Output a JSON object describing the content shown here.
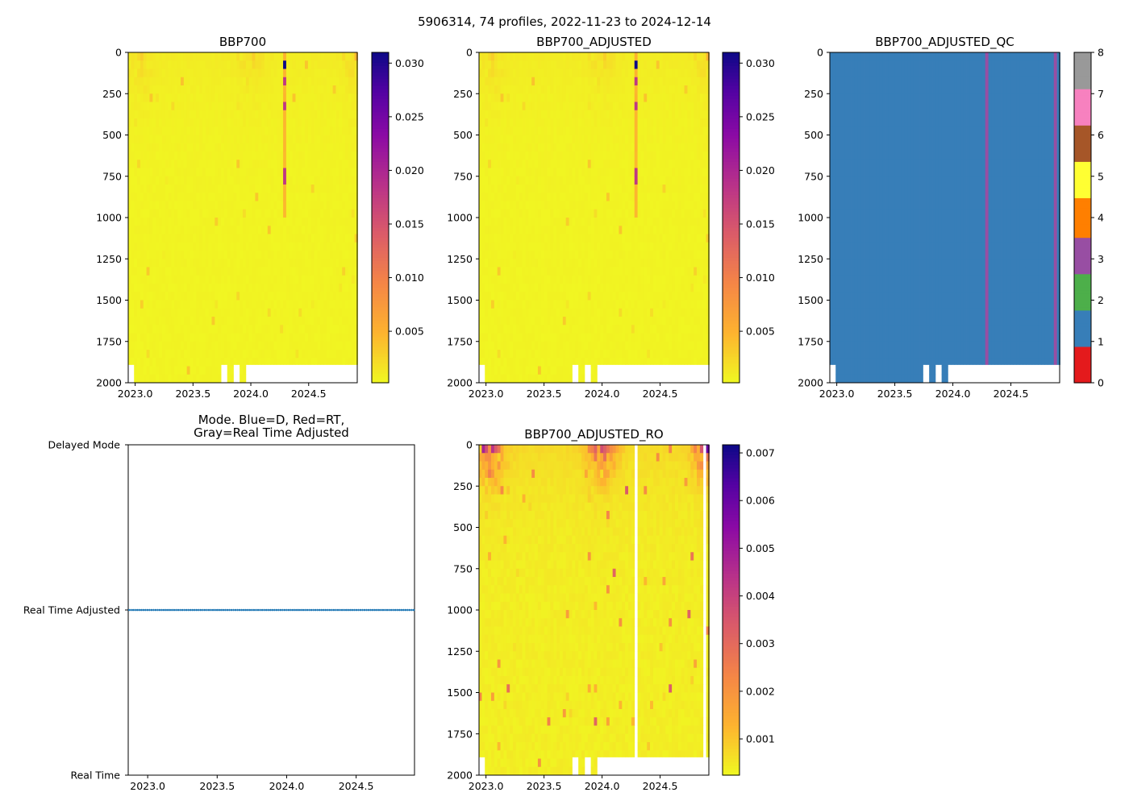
{
  "suptitle": "5906314, 74 profiles, 2022-11-23 to 2024-12-14",
  "chart_data": [
    {
      "id": "bbp700",
      "type": "heatmap",
      "title": "BBP700",
      "n_profiles": 74,
      "xlim": [
        2022.94,
        2024.92
      ],
      "ylim": [
        2000,
        0
      ],
      "xticks": [
        "2023.0",
        "2023.5",
        "2024.0",
        "2024.5"
      ],
      "xtick_values": [
        2023.0,
        2023.5,
        2024.0,
        2024.5
      ],
      "yticks": [
        "0",
        "250",
        "500",
        "750",
        "1000",
        "1250",
        "1500",
        "1750",
        "2000"
      ],
      "ytick_values": [
        0,
        250,
        500,
        750,
        1000,
        1250,
        1500,
        1750,
        2000
      ],
      "colormap": "plasma_r",
      "clim": [
        0.0002,
        0.031
      ],
      "colorbar_ticks": [
        "0.005",
        "0.010",
        "0.015",
        "0.020",
        "0.025",
        "0.030"
      ],
      "colorbar_tick_values": [
        0.005,
        0.01,
        0.015,
        0.02,
        0.025,
        0.03
      ],
      "typical_value": 0.0008,
      "surface_max_typical": 0.004,
      "anomaly_profile_time": 2024.29,
      "anomaly_max": 0.031
    },
    {
      "id": "bbp700_adjusted",
      "type": "heatmap",
      "title": "BBP700_ADJUSTED",
      "n_profiles": 74,
      "xlim": [
        2022.94,
        2024.92
      ],
      "ylim": [
        2000,
        0
      ],
      "xticks": [
        "2023.0",
        "2023.5",
        "2024.0",
        "2024.5"
      ],
      "xtick_values": [
        2023.0,
        2023.5,
        2024.0,
        2024.5
      ],
      "yticks": [
        "0",
        "250",
        "500",
        "750",
        "1000",
        "1250",
        "1500",
        "1750",
        "2000"
      ],
      "ytick_values": [
        0,
        250,
        500,
        750,
        1000,
        1250,
        1500,
        1750,
        2000
      ],
      "colormap": "plasma_r",
      "clim": [
        0.0002,
        0.031
      ],
      "colorbar_ticks": [
        "0.005",
        "0.010",
        "0.015",
        "0.020",
        "0.025",
        "0.030"
      ],
      "colorbar_tick_values": [
        0.005,
        0.01,
        0.015,
        0.02,
        0.025,
        0.03
      ],
      "anomaly_profile_time": 2024.29
    },
    {
      "id": "bbp700_adjusted_qc",
      "type": "heatmap",
      "title": "BBP700_ADJUSTED_QC",
      "n_profiles": 74,
      "xlim": [
        2022.94,
        2024.92
      ],
      "ylim": [
        2000,
        0
      ],
      "xticks": [
        "2023.0",
        "2023.5",
        "2024.0",
        "2024.5"
      ],
      "xtick_values": [
        2023.0,
        2023.5,
        2024.0,
        2024.5
      ],
      "yticks": [
        "0",
        "250",
        "500",
        "750",
        "1000",
        "1250",
        "1500",
        "1750",
        "2000"
      ],
      "ytick_values": [
        0,
        250,
        500,
        750,
        1000,
        1250,
        1500,
        1750,
        2000
      ],
      "clim": [
        0,
        8
      ],
      "qc_colors": [
        "#e41a1c",
        "#377eb8",
        "#4daf4a",
        "#984ea3",
        "#ff7f00",
        "#ffff33",
        "#a65628",
        "#f781bf",
        "#999999"
      ],
      "colorbar_ticks": [
        "0",
        "1",
        "2",
        "3",
        "4",
        "5",
        "6",
        "7",
        "8"
      ],
      "colorbar_tick_values": [
        0,
        1,
        2,
        3,
        4,
        5,
        6,
        7,
        8
      ],
      "dominant_flag": 1,
      "flag3_profile_times": [
        2024.29,
        2024.88
      ]
    },
    {
      "id": "mode",
      "type": "scatter",
      "title": "Mode. Blue=D, Red=RT,\nGray=Real Time Adjusted",
      "title_lines": [
        "Mode. Blue=D, Red=RT,",
        "Gray=Real Time Adjusted"
      ],
      "xlim": [
        2022.86,
        2024.92
      ],
      "xticks": [
        "2023.0",
        "2023.5",
        "2024.0",
        "2024.5"
      ],
      "xtick_values": [
        2023.0,
        2023.5,
        2024.0,
        2024.5
      ],
      "yticks": [
        "Delayed Mode",
        "Real Time Adjusted",
        "Real Time"
      ],
      "ytick_values": [
        2,
        1,
        0
      ],
      "point_color": "#1f77b4",
      "n_points": 74,
      "value_all": 1
    },
    {
      "id": "bbp700_adjusted_ro",
      "type": "heatmap",
      "title": "BBP700_ADJUSTED_RO",
      "n_profiles": 74,
      "xlim": [
        2022.94,
        2024.92
      ],
      "ylim": [
        2000,
        0
      ],
      "xticks": [
        "2023.0",
        "2023.5",
        "2024.0",
        "2024.5"
      ],
      "xtick_values": [
        2023.0,
        2023.5,
        2024.0,
        2024.5
      ],
      "yticks": [
        "0",
        "250",
        "500",
        "750",
        "1000",
        "1250",
        "1500",
        "1750",
        "2000"
      ],
      "ytick_values": [
        0,
        250,
        500,
        750,
        1000,
        1250,
        1500,
        1750,
        2000
      ],
      "colormap": "plasma_r",
      "clim": [
        0.00024,
        0.00717
      ],
      "colorbar_ticks": [
        "0.001",
        "0.002",
        "0.003",
        "0.004",
        "0.005",
        "0.006",
        "0.007"
      ],
      "colorbar_tick_values": [
        0.001,
        0.002,
        0.003,
        0.004,
        0.005,
        0.006,
        0.007
      ],
      "missing_profile_times": [
        2024.29,
        2024.88
      ]
    }
  ]
}
